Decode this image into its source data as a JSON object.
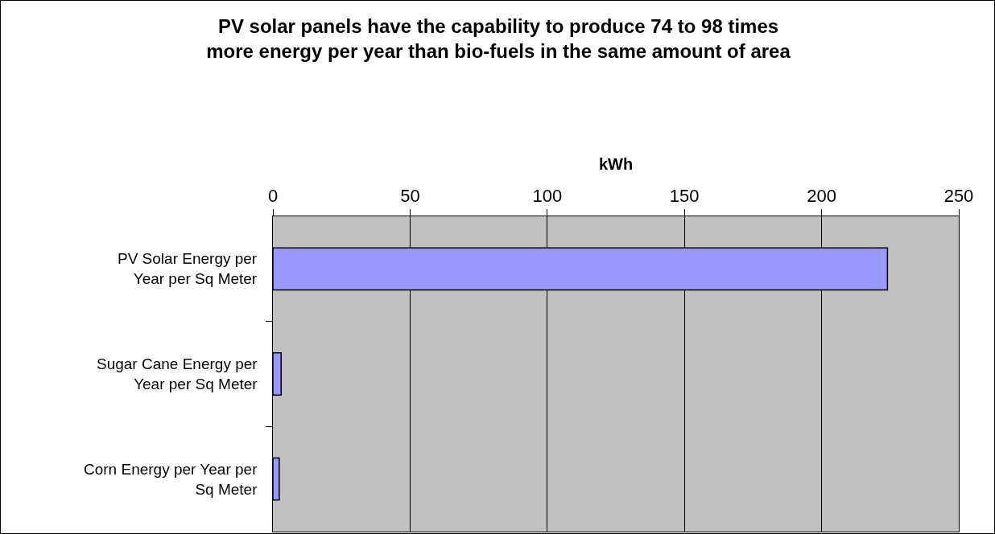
{
  "chart_data": {
    "type": "bar",
    "orientation": "horizontal",
    "title": "PV solar panels have the capability to produce 74 to 98 times\nmore energy per year than bio-fuels in the same amount of area",
    "xlabel": "kWh",
    "categories": [
      "PV Solar Energy per\nYear per Sq Meter",
      "Sugar Cane Energy per\nYear per Sq Meter",
      "Corn Energy per Year per\nSq Meter"
    ],
    "values": [
      224,
      3,
      2.3
    ],
    "color": "#9999ff",
    "xlim": [
      0,
      250
    ],
    "xticks": [
      0,
      50,
      100,
      150,
      200,
      250
    ],
    "grid": "x"
  }
}
